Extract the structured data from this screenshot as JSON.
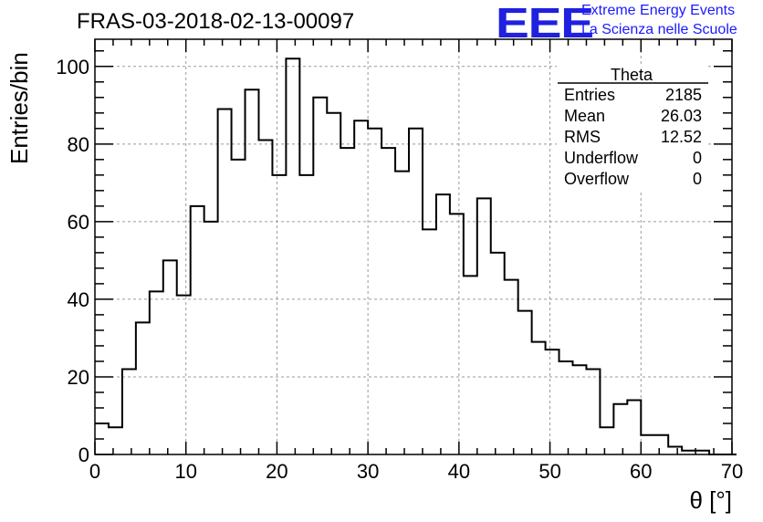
{
  "header": {
    "title": "FRAS-03-2018-02-13-00097",
    "logo_text": "EEE",
    "logo_line1": "Extreme Energy Events",
    "logo_line2": "La Scienza nelle Scuole"
  },
  "stats": {
    "name": "Theta",
    "rows": [
      {
        "label": "Entries",
        "value": "2185"
      },
      {
        "label": "Mean",
        "value": "26.03"
      },
      {
        "label": "RMS",
        "value": "12.52"
      },
      {
        "label": "Underflow",
        "value": "0"
      },
      {
        "label": "Overflow",
        "value": "0"
      }
    ]
  },
  "chart_data": {
    "type": "bar",
    "title": "FRAS-03-2018-02-13-00097",
    "xlabel": "θ [°]",
    "ylabel": "Entries/bin",
    "xlim": [
      0,
      70
    ],
    "ylim": [
      0,
      107
    ],
    "grid": true,
    "x_ticks": [
      0,
      10,
      20,
      30,
      40,
      50,
      60,
      70
    ],
    "y_ticks": [
      0,
      20,
      40,
      60,
      80,
      100
    ],
    "bin_width": 1.5,
    "values": [
      8,
      7,
      22,
      34,
      42,
      50,
      41,
      64,
      60,
      89,
      76,
      94,
      81,
      72,
      102,
      72,
      92,
      88,
      79,
      86,
      84,
      79,
      73,
      84,
      58,
      67,
      62,
      46,
      66,
      52,
      45,
      37,
      29,
      27,
      24,
      23,
      22,
      7,
      13,
      14,
      5,
      5,
      2,
      1,
      1,
      0,
      0
    ]
  }
}
